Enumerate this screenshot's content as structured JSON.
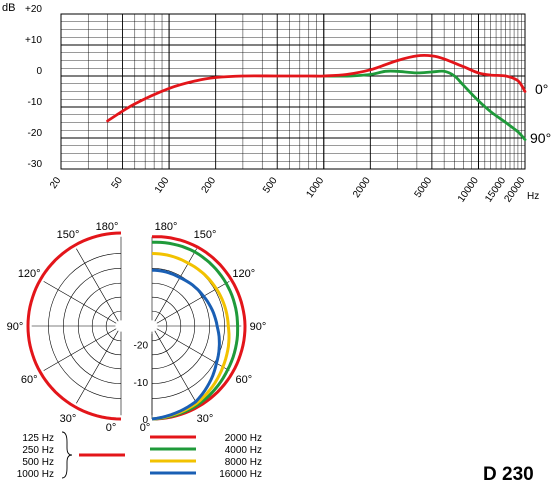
{
  "chart_data": [
    {
      "type": "line",
      "xscale": "log",
      "xlim": [
        20,
        20000
      ],
      "ylim": [
        -30,
        20
      ],
      "ylabel": "dB",
      "xlabel": "Hz",
      "y_ticks": [
        "+20",
        "+10",
        "0",
        "-10",
        "-20",
        "-30"
      ],
      "x_ticks": [
        "20",
        "50",
        "100",
        "200",
        "500",
        "1000",
        "2000",
        "5000",
        "10000",
        "15000",
        "20000"
      ],
      "series": [
        {
          "name": "0°",
          "color": "#e3151a",
          "x": [
            40,
            60,
            100,
            150,
            200,
            300,
            500,
            800,
            1000,
            1400,
            2000,
            3000,
            4000,
            5000,
            6000,
            8000,
            10000,
            12000,
            15000,
            18000,
            20000
          ],
          "y": [
            -14.5,
            -9,
            -4,
            -1.5,
            -0.5,
            0,
            0,
            0,
            0,
            0.5,
            2,
            5,
            6.5,
            6.5,
            5.5,
            3,
            1,
            0.3,
            0,
            -1.5,
            -5
          ]
        },
        {
          "name": "90°",
          "color": "#1f9a3a",
          "x": [
            1000,
            1500,
            2000,
            2500,
            3000,
            4000,
            5000,
            6000,
            7000,
            8000,
            10000,
            12000,
            15000,
            18000,
            20000
          ],
          "y": [
            0,
            0,
            0.5,
            1.5,
            1.5,
            1,
            1.3,
            1.5,
            0,
            -3,
            -8,
            -11.5,
            -15,
            -18,
            -20.5
          ]
        }
      ]
    },
    {
      "type": "polar",
      "angle_labels_left": [
        "180°",
        "150°",
        "120°",
        "90°",
        "60°",
        "30°",
        "0°"
      ],
      "angle_labels_right": [
        "180°",
        "150°",
        "120°",
        "90°",
        "60°",
        "30°",
        "0°"
      ],
      "radial_labels": [
        "-20",
        "-10",
        "0"
      ],
      "radial_range_db": [
        -25,
        0
      ],
      "series": [
        {
          "name": "125 Hz / 250 Hz / 500 Hz / 1000 Hz",
          "color": "#e3151a",
          "level_db_by_angle": [
            [
              0,
              0
            ],
            [
              30,
              0
            ],
            [
              60,
              0
            ],
            [
              90,
              0
            ],
            [
              120,
              0
            ],
            [
              150,
              0
            ],
            [
              180,
              0
            ]
          ]
        },
        {
          "name": "2000 Hz",
          "color": "#e3151a",
          "level_db_by_angle": [
            [
              0,
              0
            ],
            [
              30,
              0
            ],
            [
              60,
              0
            ],
            [
              90,
              0
            ],
            [
              120,
              -0.3
            ],
            [
              150,
              -0.5
            ],
            [
              180,
              -1
            ]
          ]
        },
        {
          "name": "4000 Hz",
          "color": "#1f9a3a",
          "level_db_by_angle": [
            [
              0,
              0
            ],
            [
              30,
              -0.5
            ],
            [
              60,
              -1.5
            ],
            [
              90,
              -2
            ],
            [
              120,
              -2
            ],
            [
              150,
              -2
            ],
            [
              180,
              -2.5
            ]
          ]
        },
        {
          "name": "8000 Hz",
          "color": "#f2c200",
          "level_db_by_angle": [
            [
              0,
              0
            ],
            [
              30,
              -1
            ],
            [
              60,
              -3
            ],
            [
              90,
              -4.5
            ],
            [
              120,
              -5
            ],
            [
              150,
              -5.5
            ],
            [
              180,
              -5.5
            ]
          ]
        },
        {
          "name": "16000 Hz",
          "color": "#1a5fb4",
          "level_db_by_angle": [
            [
              0,
              0
            ],
            [
              30,
              -1.5
            ],
            [
              60,
              -5
            ],
            [
              90,
              -7.5
            ],
            [
              120,
              -9
            ],
            [
              150,
              -10
            ],
            [
              180,
              -10
            ]
          ]
        }
      ]
    }
  ],
  "right_labels": {
    "deg0": "0°",
    "deg90": "90°"
  },
  "legend": {
    "low_freqs": [
      "125 Hz",
      "250 Hz",
      "500 Hz",
      "1000 Hz"
    ],
    "items": [
      {
        "label": "2000 Hz",
        "color": "#e3151a"
      },
      {
        "label": "4000 Hz",
        "color": "#1f9a3a"
      },
      {
        "label": "8000 Hz",
        "color": "#f2c200"
      },
      {
        "label": "16000 Hz",
        "color": "#1a5fb4"
      }
    ],
    "low_color": "#e3151a"
  },
  "model": "D 230"
}
